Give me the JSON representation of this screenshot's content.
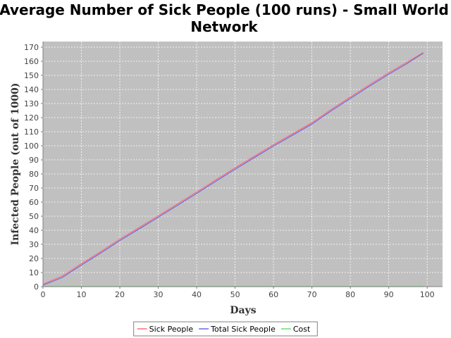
{
  "chart_data": {
    "type": "line",
    "title_lines": [
      "Average Number of Sick People (100 runs) - Small World",
      "Network"
    ],
    "xlabel": "Days",
    "ylabel": "Infected People (out of 1000)",
    "xlim": [
      0,
      104
    ],
    "ylim": [
      0,
      174
    ],
    "xticks": [
      0,
      10,
      20,
      30,
      40,
      50,
      60,
      70,
      80,
      90,
      100
    ],
    "yticks": [
      0,
      10,
      20,
      30,
      40,
      50,
      60,
      70,
      80,
      90,
      100,
      110,
      120,
      130,
      140,
      150,
      160,
      170
    ],
    "grid": true,
    "legend_position": "bottom",
    "colors": {
      "plot_background": "#c0c0c0",
      "grid": "#ffffff"
    },
    "x": [
      0,
      5,
      10,
      15,
      20,
      25,
      30,
      35,
      40,
      45,
      50,
      55,
      60,
      65,
      70,
      75,
      80,
      85,
      90,
      95,
      99
    ],
    "series": [
      {
        "name": "Sick People",
        "color": "#ff6b7d",
        "values": [
          1.8,
          7.5,
          16.3,
          24.8,
          33.7,
          41.9,
          50.3,
          58.7,
          67.2,
          75.8,
          84.4,
          92.6,
          100.8,
          108.6,
          116.4,
          125.8,
          134.6,
          143.4,
          151.8,
          159.8,
          166.2
        ]
      },
      {
        "name": "Total Sick People",
        "color": "#6a6ade",
        "values": [
          1.0,
          6.5,
          15.3,
          23.8,
          32.7,
          40.9,
          49.3,
          57.7,
          66.2,
          74.8,
          83.4,
          91.6,
          99.8,
          107.6,
          115.4,
          124.8,
          133.6,
          142.4,
          150.8,
          158.8,
          165.8
        ]
      },
      {
        "name": "Cost",
        "color": "#66e066",
        "values": [
          0,
          0,
          0,
          0,
          0,
          0,
          0,
          0,
          0,
          0,
          0,
          0,
          0,
          0,
          0,
          0,
          0,
          0,
          0,
          0,
          0
        ]
      }
    ]
  }
}
